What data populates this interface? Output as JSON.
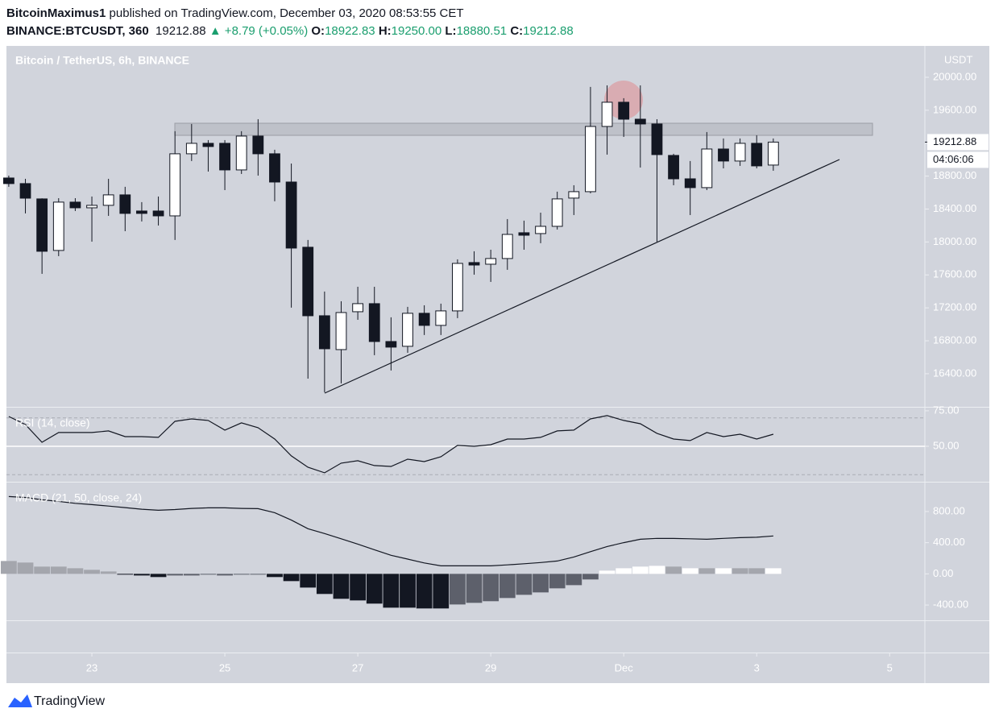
{
  "header": {
    "author": "BitcoinMaximus1",
    "published": "published on TradingView.com, December 03, 2020 08:53:55 CET",
    "symbol": "BINANCE:BTCUSDT, 360",
    "last": "19212.88",
    "change": "▲ +8.79 (+0.05%)",
    "ohlc": [
      {
        "label": "O:",
        "value": "18922.83"
      },
      {
        "label": "H:",
        "value": "19250.00"
      },
      {
        "label": "L:",
        "value": "18880.51"
      },
      {
        "label": "C:",
        "value": "19212.88"
      }
    ]
  },
  "footer": {
    "brand": "TradingView"
  },
  "chart_data": [
    {
      "type": "candlestick",
      "title": "Bitcoin / TetherUS, 6h, BINANCE",
      "unit": "USDT",
      "up_color": "#ffffff",
      "down_color": "#131722",
      "x": [
        21.75,
        22,
        22.25,
        22.5,
        22.75,
        23,
        23.25,
        23.5,
        23.75,
        24,
        24.25,
        24.5,
        24.75,
        25,
        25.25,
        25.5,
        25.75,
        26,
        26.25,
        26.5,
        26.75,
        27,
        27.25,
        27.5,
        27.75,
        28,
        28.25,
        28.5,
        28.75,
        29,
        29.25,
        29.5,
        29.75,
        30,
        30.25,
        30.5,
        30.75,
        31,
        31.25,
        31.5,
        31.75,
        32,
        32.25,
        32.5,
        32.75,
        33,
        33.25
      ],
      "open": [
        18777,
        18709,
        18523,
        17897,
        18484,
        18415,
        18445,
        18572,
        18376,
        18376,
        18317,
        19071,
        19198,
        19198,
        18875,
        19286,
        19071,
        18728,
        17936,
        17104,
        16693,
        17153,
        17251,
        16791,
        16733,
        17134,
        16987,
        17163,
        17750,
        17730,
        17799,
        18112,
        18102,
        18190,
        18533,
        18611,
        19403,
        19697,
        19491,
        19433,
        19051,
        18767,
        18660,
        19129,
        18983,
        19198,
        18934
      ],
      "high": [
        18806,
        18767,
        18530,
        18532,
        18532,
        18552,
        18767,
        18670,
        18484,
        18552,
        19345,
        19433,
        19237,
        19237,
        19345,
        19491,
        19120,
        18953,
        18024,
        17398,
        17280,
        17456,
        17456,
        17085,
        17212,
        17231,
        17251,
        17789,
        17887,
        17906,
        18278,
        18259,
        18356,
        18611,
        18689,
        19883,
        19902,
        19746,
        19902,
        19491,
        19071,
        18983,
        19335,
        19257,
        19257,
        19296,
        19257
      ],
      "low": [
        18670,
        18347,
        17613,
        17828,
        18376,
        18004,
        18317,
        18131,
        18249,
        18200,
        18024,
        18983,
        18855,
        18630,
        18826,
        18806,
        18494,
        17202,
        16341,
        16175,
        16283,
        17055,
        16625,
        16439,
        16654,
        16870,
        16870,
        17075,
        17603,
        17515,
        17662,
        17906,
        17985,
        18151,
        18327,
        18591,
        19061,
        19276,
        18904,
        18004,
        18689,
        18327,
        18630,
        18894,
        18924,
        18894,
        18865
      ],
      "close": [
        18709,
        18532,
        17887,
        18484,
        18415,
        18445,
        18572,
        18347,
        18347,
        18317,
        19071,
        19198,
        19159,
        18875,
        19286,
        19071,
        18728,
        17926,
        17104,
        16703,
        17143,
        17251,
        16791,
        16723,
        17134,
        16987,
        17163,
        17740,
        17720,
        17799,
        18092,
        18082,
        18190,
        18523,
        18611,
        19403,
        19697,
        19491,
        19433,
        19061,
        18767,
        18660,
        19129,
        18983,
        19198,
        18924,
        19212.88
      ],
      "xlim": [
        21.715,
        35.53
      ],
      "xticks": [
        23,
        25,
        27,
        29,
        {
          "value": 31,
          "label": "Dec"
        },
        {
          "value": 33,
          "label": "3"
        },
        {
          "value": 35,
          "label": "5"
        }
      ],
      "ylim": [
        15998,
        20381
      ],
      "yticks": [
        {
          "value": 16400,
          "label": "16400.00"
        },
        {
          "value": 16800,
          "label": "16800.00"
        },
        {
          "value": 17200,
          "label": "17200.00"
        },
        {
          "value": 17600,
          "label": "17600.00"
        },
        {
          "value": 18000,
          "label": "18000.00"
        },
        {
          "value": 18400,
          "label": "18400.00"
        },
        {
          "value": 18800,
          "label": "18800.00"
        },
        {
          "value": 19200,
          "label": "19200.00"
        },
        {
          "value": 19600,
          "label": "19600.00"
        },
        {
          "value": 20000,
          "label": "20000.00"
        }
      ],
      "last_price": 19212.88,
      "countdown": "04:06:06"
    },
    {
      "type": "line",
      "title": "RSI (14, close)",
      "color": "#131722",
      "values": [
        71,
        65.3,
        52.8,
        59.7,
        59.7,
        59.7,
        60.8,
        56.8,
        56.8,
        56.3,
        67.6,
        69.3,
        68.2,
        61.4,
        66.5,
        63.1,
        55.1,
        43.2,
        35.2,
        31.3,
        38.1,
        39.8,
        36.4,
        35.8,
        40.9,
        39.2,
        42.6,
        50.6,
        50,
        51.1,
        55.1,
        55.1,
        56.3,
        60.8,
        61.4,
        69.3,
        71.6,
        68.2,
        65.9,
        59.1,
        55.1,
        54,
        59.7,
        56.8,
        58.5,
        55.1,
        58.5
      ],
      "ylim": [
        25,
        77.8
      ],
      "yticks": [
        {
          "value": 50,
          "label": "50.00"
        },
        {
          "value": 75,
          "label": "75.00"
        }
      ],
      "levels": [
        70,
        30
      ],
      "midline": 50
    },
    {
      "type": "macd",
      "title": "MACD (21, 50, close, 24)",
      "series": [
        {
          "type": "bar",
          "colors": [
            "#a4a6ad",
            "#a4a6ad",
            "#a4a6ad",
            "#a4a6ad",
            "#a4a6ad",
            "#a4a6ad",
            "#a4a6ad",
            "#131722",
            "#131722",
            "#131722",
            "#5d606b",
            "#5d606b",
            "#5d606b",
            "#5d606b",
            "#5d606b",
            "#5d606b",
            "#131722",
            "#131722",
            "#131722",
            "#131722",
            "#131722",
            "#131722",
            "#131722",
            "#131722",
            "#131722",
            "#131722",
            "#131722",
            "#5d606b",
            "#5d606b",
            "#5d606b",
            "#5d606b",
            "#5d606b",
            "#5d606b",
            "#5d606b",
            "#5d606b",
            "#5d606b",
            "#ffffff",
            "#ffffff",
            "#ffffff",
            "#ffffff",
            "#a4a6ad",
            "#ffffff",
            "#a4a6ad",
            "#ffffff",
            "#a4a6ad",
            "#a4a6ad",
            "#ffffff"
          ],
          "values": [
            165,
            145,
            93,
            93,
            72,
            52,
            31,
            -10,
            -21,
            -41,
            -21,
            -21,
            -10,
            -21,
            -10,
            -10,
            -41,
            -93,
            -176,
            -258,
            -320,
            -341,
            -382,
            -434,
            -434,
            -444,
            -444,
            -393,
            -372,
            -351,
            -310,
            -269,
            -238,
            -186,
            -145,
            -72,
            41,
            72,
            93,
            103,
            93,
            72,
            72,
            72,
            72,
            72,
            72
          ]
        },
        {
          "type": "line",
          "color": "#131722",
          "values": [
            992,
            980,
            950,
            930,
            905,
            888,
            870,
            850,
            830,
            816,
            825,
            840,
            847,
            847,
            840,
            837,
            785,
            690,
            579,
            517,
            450,
            382,
            310,
            238,
            190,
            140,
            103,
            103,
            103,
            103,
            115,
            130,
            145,
            165,
            217,
            285,
            351,
            400,
            444,
            455,
            454,
            450,
            444,
            455,
            465,
            470,
            486
          ]
        }
      ],
      "ylim": [
        -596,
        1182
      ],
      "yticks": [
        {
          "value": -400,
          "label": "-400.00"
        },
        {
          "value": 0,
          "label": "0.00"
        },
        {
          "value": 400,
          "label": "400.00"
        },
        {
          "value": 800,
          "label": "800.00"
        }
      ]
    }
  ]
}
